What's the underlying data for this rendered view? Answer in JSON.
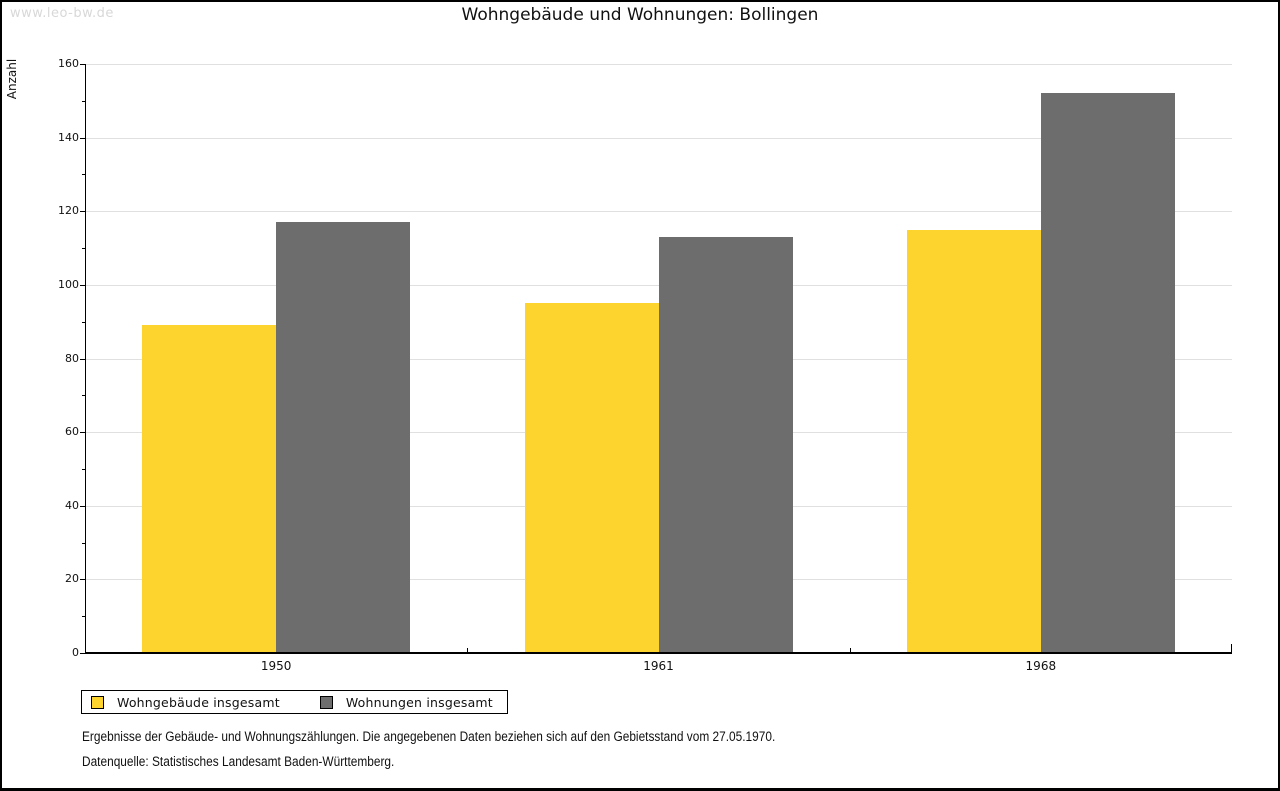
{
  "watermark": "www.leo-bw.de",
  "title": "Wohngebäude und Wohnungen: Bollingen",
  "chart_data": {
    "type": "bar",
    "categories": [
      "1950",
      "1961",
      "1968"
    ],
    "series": [
      {
        "name": "Wohngebäude insgesamt",
        "color": "#FCD42D",
        "values": [
          89,
          95,
          115
        ]
      },
      {
        "name": "Wohnungen insgesamt",
        "color": "#6D6D6D",
        "values": [
          117,
          113,
          152
        ]
      }
    ],
    "title": "Wohngebäude und Wohnungen: Bollingen",
    "xlabel": "",
    "ylabel": "Anzahl",
    "ylim": [
      0,
      160
    ],
    "ytick_step": 20,
    "yminor_step": 10,
    "grid": true,
    "legend_position": "bottom-left"
  },
  "footnotes": [
    "Ergebnisse der Gebäude- und Wohnungszählungen. Die angegebenen Daten beziehen sich auf den Gebietsstand vom 27.05.1970.",
    "Datenquelle: Statistisches Landesamt Baden-Württemberg."
  ]
}
